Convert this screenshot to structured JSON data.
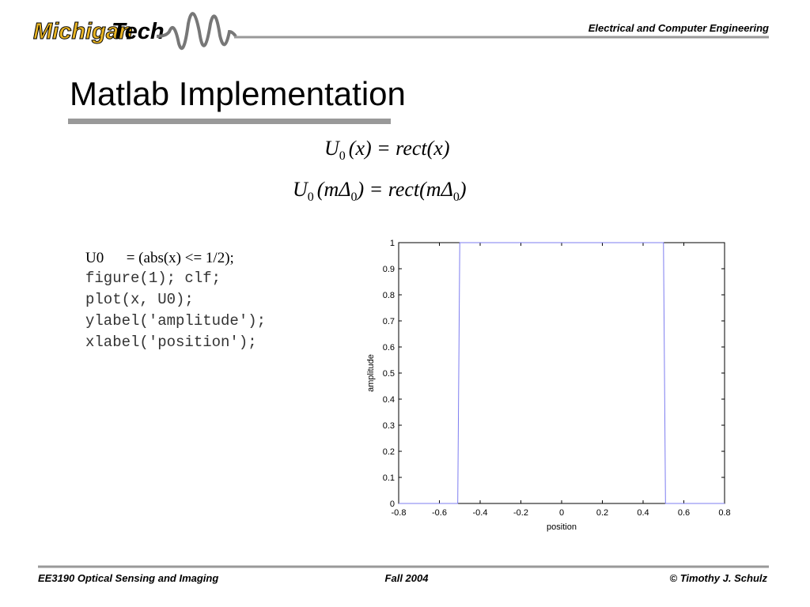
{
  "header": {
    "logo_left": "Michigan",
    "logo_right": "Tech",
    "department": "Electrical and Computer Engineering"
  },
  "title": "Matlab Implementation",
  "equations": [
    [
      "U",
      "0",
      "(x) = rect(x)"
    ],
    [
      "U",
      "0",
      "(mΔ",
      "0",
      ") = rect(mΔ",
      "0",
      ")"
    ]
  ],
  "code": [
    "U0      = (abs(x) <= 1/2);",
    "figure(1); clf;",
    "plot(x, U0);",
    "ylabel('amplitude');",
    "xlabel('position');"
  ],
  "chart_data": {
    "type": "line",
    "xlabel": "position",
    "ylabel": "amplitude",
    "x": [
      -0.8,
      -0.51,
      -0.5,
      0.5,
      0.51,
      0.8
    ],
    "values": [
      0,
      0,
      1,
      1,
      0,
      0
    ],
    "color": "#7d7df0",
    "xlim": [
      -0.8,
      0.8
    ],
    "xticks": [
      -0.8,
      -0.6,
      -0.4,
      -0.2,
      0,
      0.2,
      0.4,
      0.6,
      0.8
    ],
    "ylim": [
      0,
      1
    ],
    "yticks": [
      0,
      0.1,
      0.2,
      0.3,
      0.4,
      0.5,
      0.6,
      0.7,
      0.8,
      0.9,
      1
    ]
  },
  "footer": {
    "course": "EE3190 Optical Sensing and Imaging",
    "term": "Fall 2004",
    "author": "© Timothy J. Schulz"
  }
}
